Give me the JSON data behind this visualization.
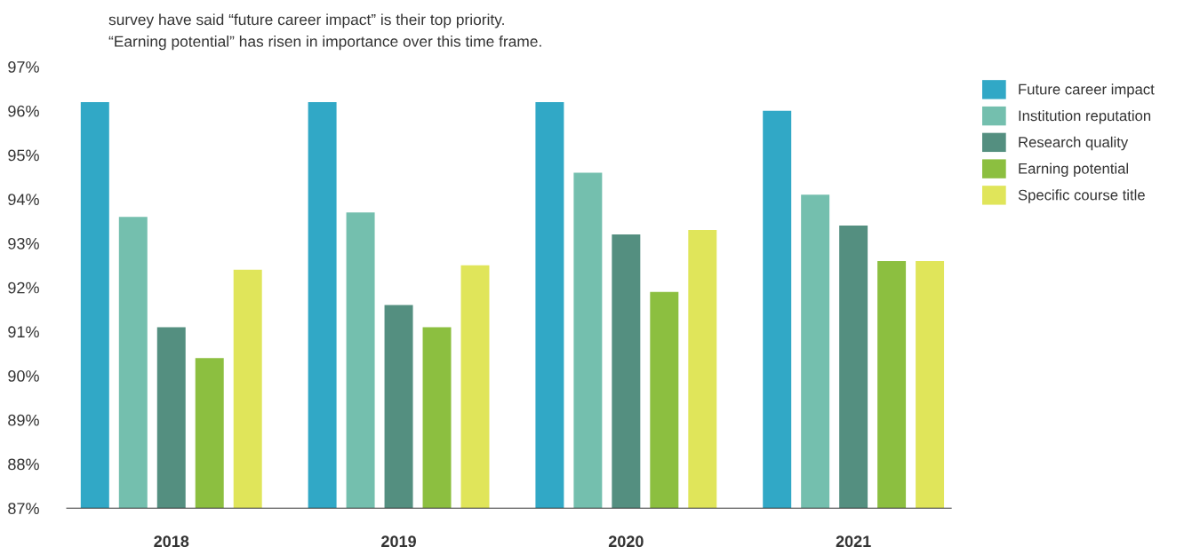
{
  "chart_data": {
    "type": "bar",
    "categories": [
      "2018",
      "2019",
      "2020",
      "2021"
    ],
    "series": [
      {
        "name": "Future career impact",
        "color": "#31a8c6",
        "values": [
          96.2,
          96.2,
          96.2,
          96.0
        ]
      },
      {
        "name": "Institution reputation",
        "color": "#74bfae",
        "values": [
          93.6,
          93.7,
          94.6,
          94.1
        ]
      },
      {
        "name": "Research quality",
        "color": "#548f80",
        "values": [
          91.1,
          91.6,
          93.2,
          93.4
        ]
      },
      {
        "name": "Earning potential",
        "color": "#8cbf40",
        "values": [
          90.4,
          91.1,
          91.9,
          92.6
        ]
      },
      {
        "name": "Specific course title",
        "color": "#e0e55a",
        "values": [
          92.4,
          92.5,
          93.3,
          92.6
        ]
      }
    ],
    "ylim": [
      87,
      97
    ],
    "yticks": [
      {
        "value": 87,
        "label": "87%"
      },
      {
        "value": 88,
        "label": "88%"
      },
      {
        "value": 89,
        "label": "89%"
      },
      {
        "value": 90,
        "label": "90%"
      },
      {
        "value": 91,
        "label": "91%"
      },
      {
        "value": 92,
        "label": "92%"
      },
      {
        "value": 93,
        "label": "93%"
      },
      {
        "value": 94,
        "label": "94%"
      },
      {
        "value": 95,
        "label": "95%"
      },
      {
        "value": 96,
        "label": "96%"
      },
      {
        "value": 97,
        "label": "97%"
      }
    ],
    "annotations": [
      "survey have said “future career impact” is their top priority.",
      "“Earning potential” has risen in importance over this time frame."
    ],
    "legend": "top right",
    "grid": false
  }
}
